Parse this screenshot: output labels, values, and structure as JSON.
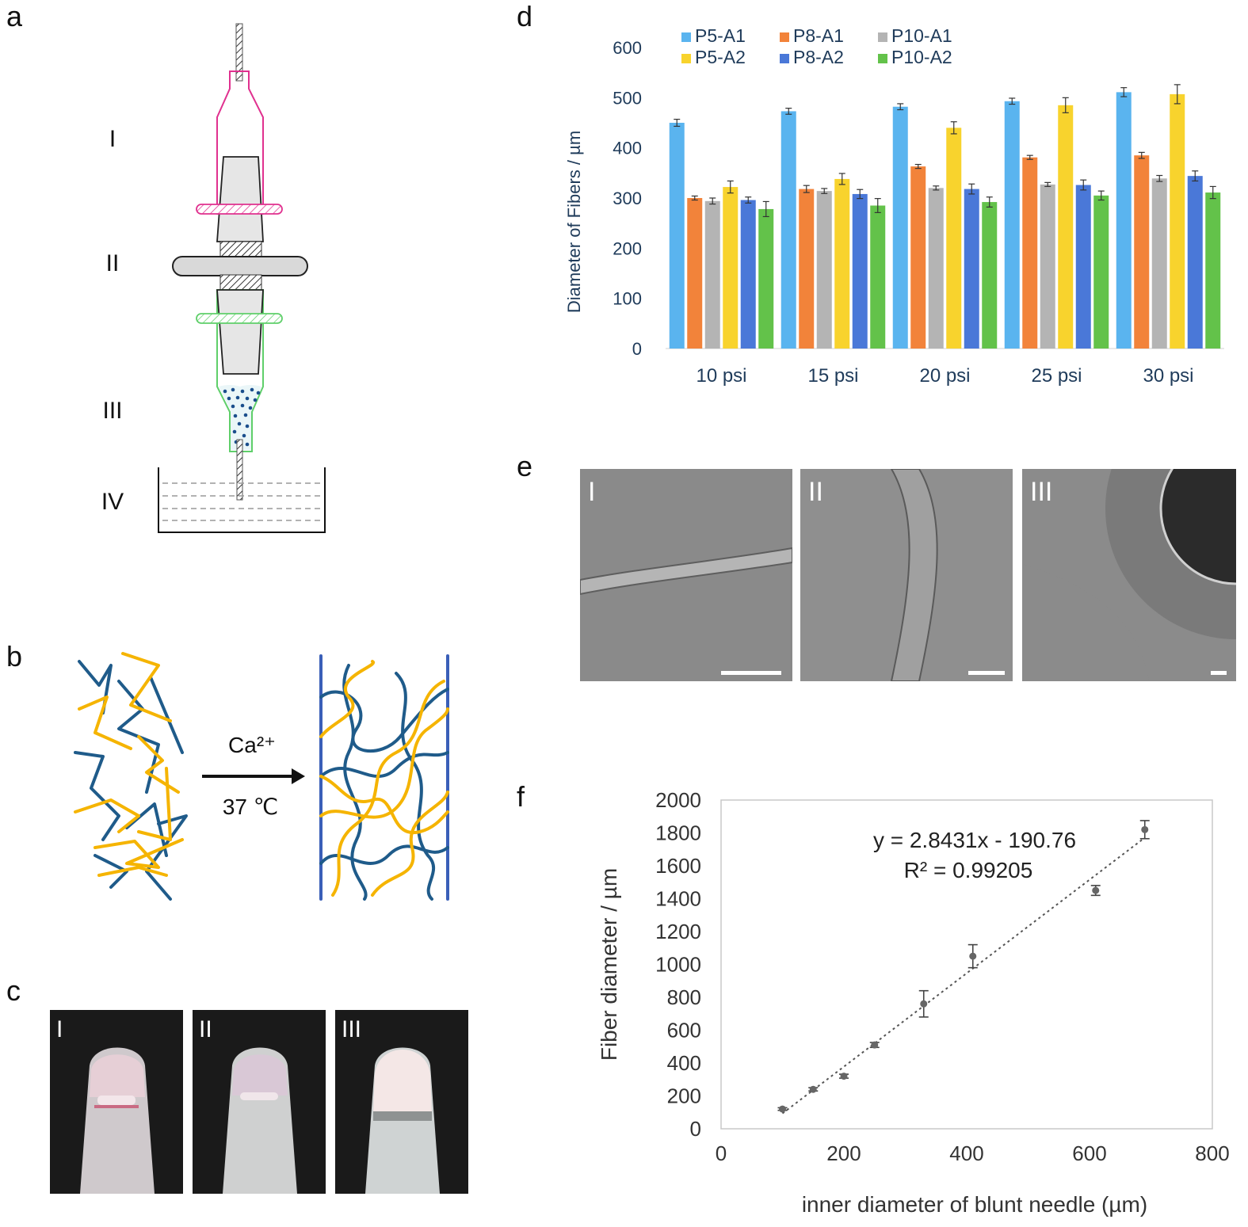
{
  "panels": {
    "a": "a",
    "b": "b",
    "c": "c",
    "d": "d",
    "e": "e",
    "f": "f"
  },
  "diagram_a": {
    "labels": [
      "I",
      "II",
      "III",
      "IV"
    ]
  },
  "diagram_b": {
    "reagent": "Ca²⁺",
    "temperature": "37 ℃"
  },
  "photos_c": [
    "I",
    "II",
    "III"
  ],
  "micro_e": [
    "I",
    "II",
    "III"
  ],
  "colors": {
    "series": [
      "#5ab4ef",
      "#f2833a",
      "#b4b4b4",
      "#f8d32d",
      "#4a78d8",
      "#63c24a"
    ],
    "strand_blue": "#1f5b8a",
    "strand_yellow": "#f5b400",
    "syringe_pink": "#e0318f",
    "syringe_green": "#5fcf6a"
  },
  "chart_data": [
    {
      "type": "bar",
      "ylabel": "Diameter of Fibers / µm",
      "xlabel": "",
      "categories": [
        "10 psi",
        "15 psi",
        "20 psi",
        "25 psi",
        "30 psi"
      ],
      "ylim": [
        0,
        600
      ],
      "yticks": [
        "0",
        "100",
        "200",
        "300",
        "400",
        "500",
        "600"
      ],
      "legend_position": "top",
      "series": [
        {
          "name": "P5-A1",
          "values": [
            450,
            473,
            482,
            493,
            511
          ],
          "err": [
            7,
            6,
            6,
            6,
            9
          ]
        },
        {
          "name": "P8-A1",
          "values": [
            300,
            318,
            363,
            381,
            385
          ],
          "err": [
            4,
            7,
            4,
            4,
            6
          ]
        },
        {
          "name": "P10-A1",
          "values": [
            294,
            314,
            320,
            327,
            339
          ],
          "err": [
            6,
            5,
            4,
            4,
            6
          ]
        },
        {
          "name": "P5-A2",
          "values": [
            322,
            338,
            440,
            485,
            507
          ],
          "err": [
            12,
            11,
            12,
            15,
            19
          ]
        },
        {
          "name": "P8-A2",
          "values": [
            296,
            308,
            318,
            326,
            344
          ],
          "err": [
            6,
            9,
            10,
            10,
            10
          ]
        },
        {
          "name": "P10-A2",
          "values": [
            278,
            285,
            292,
            305,
            311
          ],
          "err": [
            15,
            14,
            10,
            9,
            12
          ]
        }
      ]
    },
    {
      "type": "scatter",
      "xlabel": "inner diameter of blunt needle (µm)",
      "ylabel": "Fiber diameter / µm",
      "xlim": [
        0,
        800
      ],
      "ylim": [
        0,
        2000
      ],
      "xticks": [
        "0",
        "200",
        "400",
        "600",
        "800"
      ],
      "yticks": [
        "0",
        "200",
        "400",
        "600",
        "800",
        "1000",
        "1200",
        "1400",
        "1600",
        "1800",
        "2000"
      ],
      "x": [
        100,
        150,
        200,
        250,
        330,
        410,
        610,
        690
      ],
      "y": [
        120,
        240,
        320,
        510,
        760,
        1050,
        1450,
        1820
      ],
      "err": [
        8,
        10,
        12,
        15,
        80,
        70,
        30,
        55
      ],
      "trendline": {
        "slope": 2.8431,
        "intercept": -190.76
      },
      "equation": "y = 2.8431x - 190.76",
      "r2": "R² = 0.99205"
    }
  ]
}
